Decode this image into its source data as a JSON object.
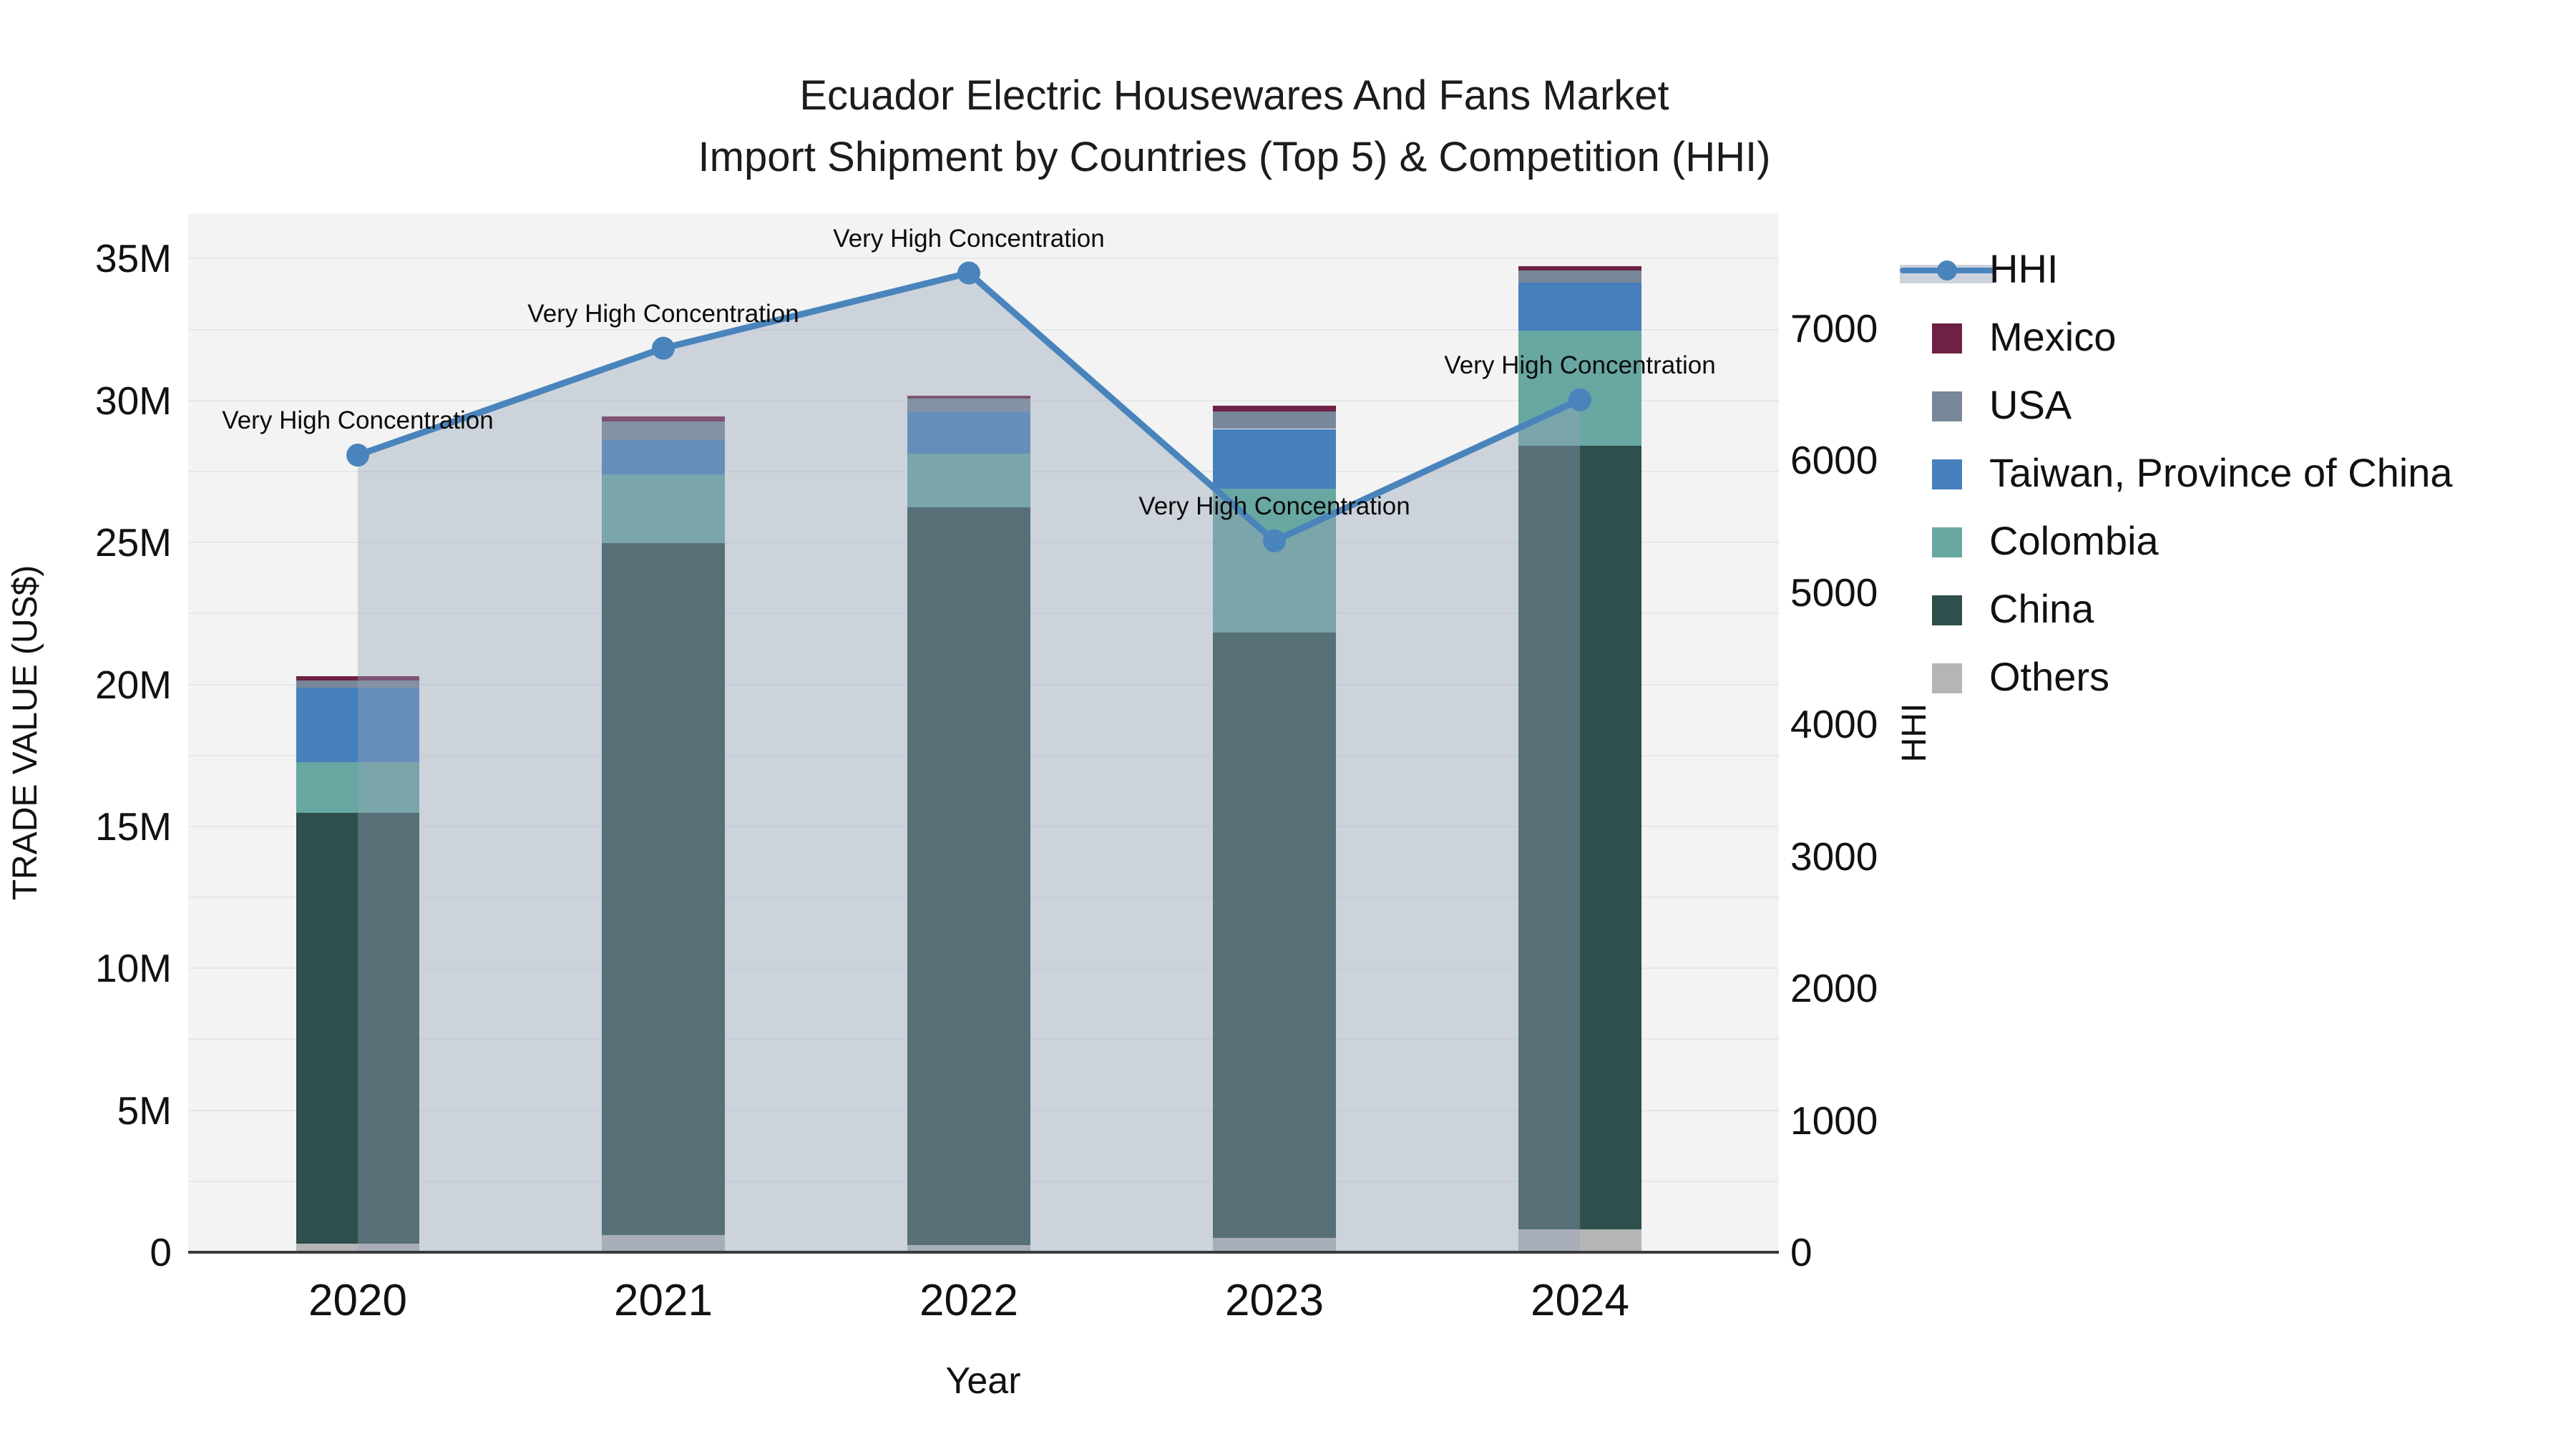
{
  "title": {
    "line1": "Ecuador Electric Housewares And Fans Market",
    "line2": "Import Shipment by Countries (Top 5) & Competition (HHI)"
  },
  "axes": {
    "left": {
      "title": "TRADE VALUE (US$)",
      "ticks": [
        {
          "label": "0",
          "value": 0
        },
        {
          "label": "5M",
          "value": 5
        },
        {
          "label": "10M",
          "value": 10
        },
        {
          "label": "15M",
          "value": 15
        },
        {
          "label": "20M",
          "value": 20
        },
        {
          "label": "25M",
          "value": 25
        },
        {
          "label": "30M",
          "value": 30
        },
        {
          "label": "35M",
          "value": 35
        }
      ]
    },
    "right": {
      "title": "HHI",
      "ticks": [
        {
          "label": "0",
          "value": 0
        },
        {
          "label": "1000",
          "value": 1000
        },
        {
          "label": "2000",
          "value": 2000
        },
        {
          "label": "3000",
          "value": 3000
        },
        {
          "label": "4000",
          "value": 4000
        },
        {
          "label": "5000",
          "value": 5000
        },
        {
          "label": "6000",
          "value": 6000
        },
        {
          "label": "7000",
          "value": 7000
        }
      ]
    },
    "x": {
      "title": "Year"
    }
  },
  "legend": [
    {
      "label": "HHI",
      "type": "line",
      "color": "#4a84bc",
      "band_color": "#ccd2dc"
    },
    {
      "label": "Mexico",
      "type": "swatch",
      "color": "#6e2145"
    },
    {
      "label": "USA",
      "type": "swatch",
      "color": "#78879a"
    },
    {
      "label": "Taiwan, Province of China",
      "type": "swatch",
      "color": "#4680bc"
    },
    {
      "label": "Colombia",
      "type": "swatch",
      "color": "#68a7a2"
    },
    {
      "label": "China",
      "type": "swatch",
      "color": "#2e4f4b"
    },
    {
      "label": "Others",
      "type": "swatch",
      "color": "#b4b6b6"
    }
  ],
  "colors": {
    "plot_bg": "#f2f3f2",
    "grid": "#e6e7e8",
    "axis_line": "#3b3b3b",
    "area_fill": "rgba(150,163,186,0.40)",
    "hhi_line": "#4a84bc",
    "text": "#111111"
  },
  "chart_data": {
    "type": "combo",
    "bar_type": "stacked",
    "title": "Ecuador Electric Housewares And Fans Market — Import Shipment by Countries (Top 5) & Competition (HHI)",
    "xlabel": "Year",
    "ylabel_left": "TRADE VALUE (US$)",
    "ylabel_right": "HHI",
    "categories": [
      "2020",
      "2021",
      "2022",
      "2023",
      "2024"
    ],
    "bar_value_unit": "million US$",
    "stack_order_bottom_to_top": [
      "Others",
      "China",
      "Colombia",
      "Taiwan, Province of China",
      "USA",
      "Mexico"
    ],
    "series": [
      {
        "name": "Others",
        "values": [
          0.3,
          0.6,
          0.25,
          0.5,
          0.8
        ]
      },
      {
        "name": "China",
        "values": [
          15.17,
          24.39,
          26.0,
          21.34,
          27.62
        ]
      },
      {
        "name": "Colombia",
        "values": [
          1.79,
          2.42,
          1.89,
          5.06,
          4.05
        ]
      },
      {
        "name": "Taiwan, Province of China",
        "values": [
          2.64,
          1.21,
          1.44,
          2.1,
          1.69
        ]
      },
      {
        "name": "USA",
        "values": [
          0.25,
          0.65,
          0.5,
          0.63,
          0.43
        ]
      },
      {
        "name": "Mexico",
        "values": [
          0.15,
          0.18,
          0.08,
          0.18,
          0.15
        ]
      }
    ],
    "bar_totals": [
      20.3,
      29.45,
      30.16,
      29.81,
      34.74
    ],
    "line_series": {
      "name": "HHI",
      "axis": "right",
      "values": [
        6040,
        6850,
        7420,
        5390,
        6460
      ],
      "area_fill": true
    },
    "annotations": [
      {
        "x": "2020",
        "text": "Very High Concentration"
      },
      {
        "x": "2021",
        "text": "Very High Concentration"
      },
      {
        "x": "2022",
        "text": "Very High Concentration"
      },
      {
        "x": "2023",
        "text": "Very High Concentration"
      },
      {
        "x": "2024",
        "text": "Very High Concentration"
      }
    ],
    "left_axis_range": [
      0,
      36.6
    ],
    "right_axis_range": [
      0,
      7873
    ],
    "grid": true,
    "legend_position": "right"
  }
}
